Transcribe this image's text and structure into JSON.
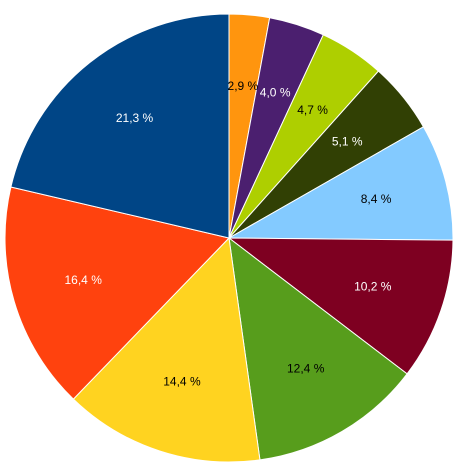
{
  "chart_data": {
    "type": "pie",
    "title": "",
    "start_angle_deg": 0,
    "direction": "clockwise",
    "legend": "none",
    "slices": [
      {
        "label": "2,9 %",
        "value": 2.9,
        "color": "#ff950e",
        "label_color": "#000000"
      },
      {
        "label": "4,0 %",
        "value": 4.0,
        "color": "#4b1f6f",
        "label_color": "#ffffff"
      },
      {
        "label": "4,7 %",
        "value": 4.7,
        "color": "#aecf00",
        "label_color": "#000000"
      },
      {
        "label": "5,1 %",
        "value": 5.1,
        "color": "#314004",
        "label_color": "#ffffff"
      },
      {
        "label": "8,4 %",
        "value": 8.4,
        "color": "#83caff",
        "label_color": "#000000"
      },
      {
        "label": "10,2 %",
        "value": 10.2,
        "color": "#7e0021",
        "label_color": "#ffffff"
      },
      {
        "label": "12,4 %",
        "value": 12.4,
        "color": "#579d1c",
        "label_color": "#000000"
      },
      {
        "label": "14,4 %",
        "value": 14.4,
        "color": "#ffd320",
        "label_color": "#000000"
      },
      {
        "label": "16,4 %",
        "value": 16.4,
        "color": "#ff420e",
        "label_color": "#ffffff"
      },
      {
        "label": "21,3 %",
        "value": 21.3,
        "color": "#004586",
        "label_color": "#ffffff"
      }
    ]
  }
}
